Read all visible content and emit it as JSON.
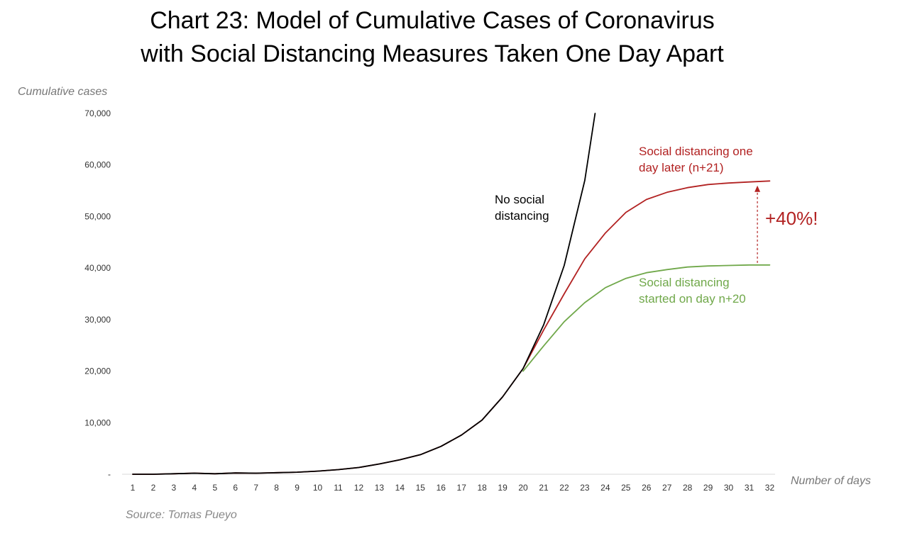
{
  "chart_data": {
    "type": "line",
    "title_lines": [
      "Chart 23: Model of Cumulative Cases of Coronavirus",
      "with Social Distancing Measures Taken One Day Apart"
    ],
    "ylabel": "Cumulative cases",
    "xlabel": "Number of days",
    "source": "Source: Tomas Pueyo",
    "y_ticks": [
      0,
      10000,
      20000,
      30000,
      40000,
      50000,
      60000,
      70000
    ],
    "y_tick_labels": [
      "-",
      "10,000",
      "20,000",
      "30,000",
      "40,000",
      "50,000",
      "60,000",
      "70,000"
    ],
    "ylim": [
      0,
      70000
    ],
    "x": [
      1,
      2,
      3,
      4,
      5,
      6,
      7,
      8,
      9,
      10,
      11,
      12,
      13,
      14,
      15,
      16,
      17,
      18,
      19,
      20,
      21,
      22,
      23,
      24,
      25,
      26,
      27,
      28,
      29,
      30,
      31,
      32
    ],
    "grid": false,
    "series": [
      {
        "label_lines": [
          "No social",
          "distancing"
        ],
        "color": "#000000",
        "x": [
          1,
          2,
          3,
          4,
          5,
          6,
          7,
          8,
          9,
          10,
          11,
          12,
          13,
          14,
          15,
          16,
          17,
          18,
          19,
          20,
          21,
          22,
          23,
          23.5
        ],
        "values": [
          0,
          0,
          100,
          200,
          100,
          250,
          200,
          300,
          400,
          600,
          900,
          1300,
          2000,
          2800,
          3800,
          5400,
          7600,
          10500,
          15000,
          20500,
          29000,
          40500,
          57000,
          70000
        ]
      },
      {
        "label_lines": [
          "Social distancing one",
          "day later (n+21)"
        ],
        "color": "#b22222",
        "x": [
          1,
          2,
          3,
          4,
          5,
          6,
          7,
          8,
          9,
          10,
          11,
          12,
          13,
          14,
          15,
          16,
          17,
          18,
          19,
          20,
          21,
          22,
          23,
          24,
          25,
          26,
          27,
          28,
          29,
          30,
          31,
          32
        ],
        "values": [
          0,
          0,
          100,
          200,
          100,
          250,
          200,
          300,
          400,
          600,
          900,
          1300,
          2000,
          2800,
          3800,
          5400,
          7600,
          10500,
          15000,
          20500,
          28000,
          35000,
          41800,
          46800,
          50800,
          53300,
          54700,
          55600,
          56200,
          56500,
          56700,
          56900
        ]
      },
      {
        "label_lines": [
          "Social distancing",
          "started on day n+20"
        ],
        "color": "#70a84a",
        "x": [
          20,
          21,
          22,
          23,
          24,
          25,
          26,
          27,
          28,
          29,
          30,
          31,
          32
        ],
        "values": [
          20000,
          24900,
          29600,
          33300,
          36200,
          38000,
          39100,
          39700,
          40200,
          40400,
          40500,
          40600,
          40600
        ]
      }
    ],
    "annotations": [
      {
        "text": "+40%!",
        "color": "#b22222",
        "arrow_from": [
          31.4,
          41000
        ],
        "arrow_to": [
          31.4,
          56000
        ]
      }
    ]
  }
}
